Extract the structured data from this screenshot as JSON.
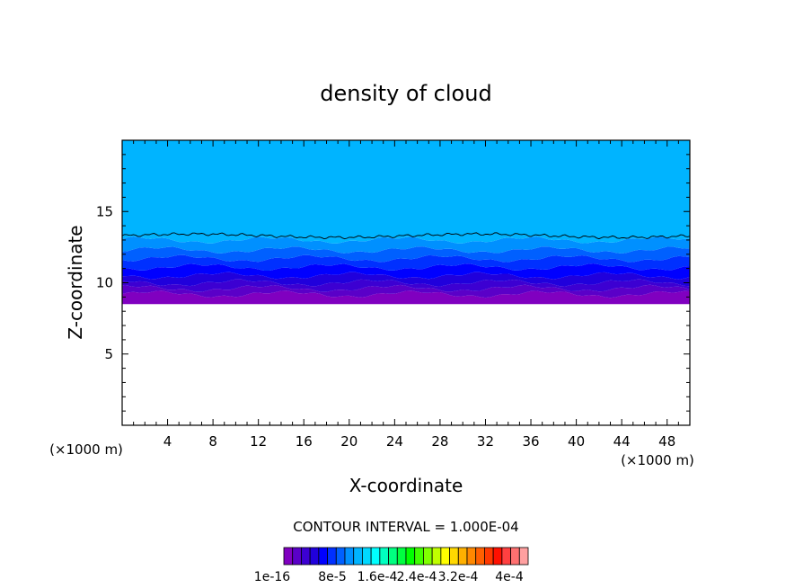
{
  "chart_data": {
    "type": "heatmap",
    "title": "density of cloud",
    "xlabel": "X-coordinate",
    "ylabel": "Z-coordinate",
    "x_unit": "(×1000 m)",
    "y_unit": "(×1000 m)",
    "xlim": [
      0,
      50
    ],
    "ylim": [
      0,
      20
    ],
    "xticks": [
      4,
      8,
      12,
      16,
      20,
      24,
      28,
      32,
      36,
      40,
      44,
      48
    ],
    "yticks": [
      5,
      10,
      15
    ],
    "contour_interval_text": "CONTOUR INTERVAL = 1.000E-04",
    "colorbar_labels": [
      "1e-16",
      "8e-5",
      "1.6e-4",
      "2.4e-4",
      "3.2e-4",
      "4e-4"
    ],
    "colorbar_colors": [
      "#8000c0",
      "#5a00c8",
      "#3c00d2",
      "#2000dc",
      "#0000ff",
      "#0030ff",
      "#0060ff",
      "#0090ff",
      "#00b4ff",
      "#00d8ff",
      "#00ffff",
      "#00ffc0",
      "#00ff80",
      "#00ff40",
      "#00ff00",
      "#40ff00",
      "#80ff00",
      "#c0ff00",
      "#ffff00",
      "#ffd800",
      "#ffb000",
      "#ff8800",
      "#ff6000",
      "#ff3800",
      "#ff1000",
      "#ff4040",
      "#ff7070",
      "#ffa0a0"
    ],
    "layers": [
      {
        "z_bottom": 8.5,
        "z_top": 9.2,
        "color": "#8000c0"
      },
      {
        "z_bottom": 9.2,
        "z_top": 9.6,
        "color": "#5a00c8"
      },
      {
        "z_bottom": 9.6,
        "z_top": 10.0,
        "color": "#3c00d2"
      },
      {
        "z_bottom": 10.0,
        "z_top": 10.5,
        "color": "#2000dc"
      },
      {
        "z_bottom": 10.5,
        "z_top": 11.1,
        "color": "#0000ff"
      },
      {
        "z_bottom": 11.1,
        "z_top": 11.7,
        "color": "#0030ff"
      },
      {
        "z_bottom": 11.7,
        "z_top": 12.3,
        "color": "#0060ff"
      },
      {
        "z_bottom": 12.3,
        "z_top": 13.0,
        "color": "#0090ff"
      },
      {
        "z_bottom": 13.0,
        "z_top": 20.0,
        "color": "#00b4ff"
      }
    ],
    "contour_line_z": 13.3
  }
}
